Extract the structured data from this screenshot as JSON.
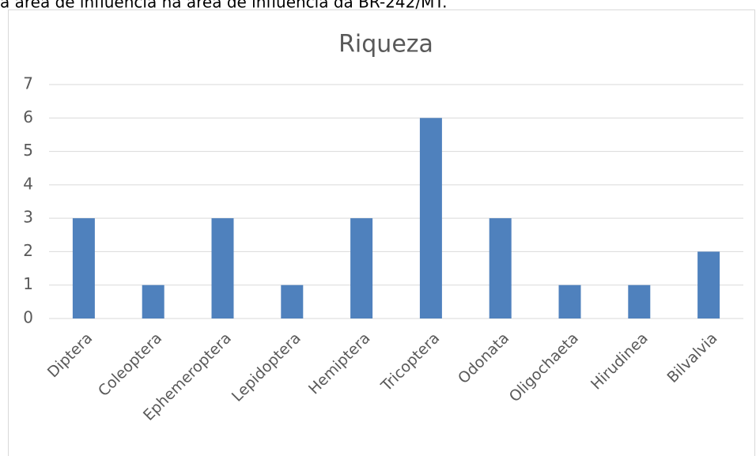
{
  "caption": "a área de influência na área de influência da BR-242/MT.",
  "chart_data": {
    "type": "bar",
    "title": "Riqueza",
    "categories": [
      "Diptera",
      "Coleoptera",
      "Ephemeroptera",
      "Lepidoptera",
      "Hemiptera",
      "Tricoptera",
      "Odonata",
      "Oligochaeta",
      "Hirudinea",
      "Bilvalvia"
    ],
    "values": [
      3,
      1,
      3,
      1,
      3,
      6,
      3,
      1,
      1,
      2
    ],
    "color": "#4f81bd",
    "ylim": [
      0,
      7
    ],
    "yticks": [
      0,
      1,
      2,
      3,
      4,
      5,
      6,
      7
    ],
    "grid": true
  }
}
